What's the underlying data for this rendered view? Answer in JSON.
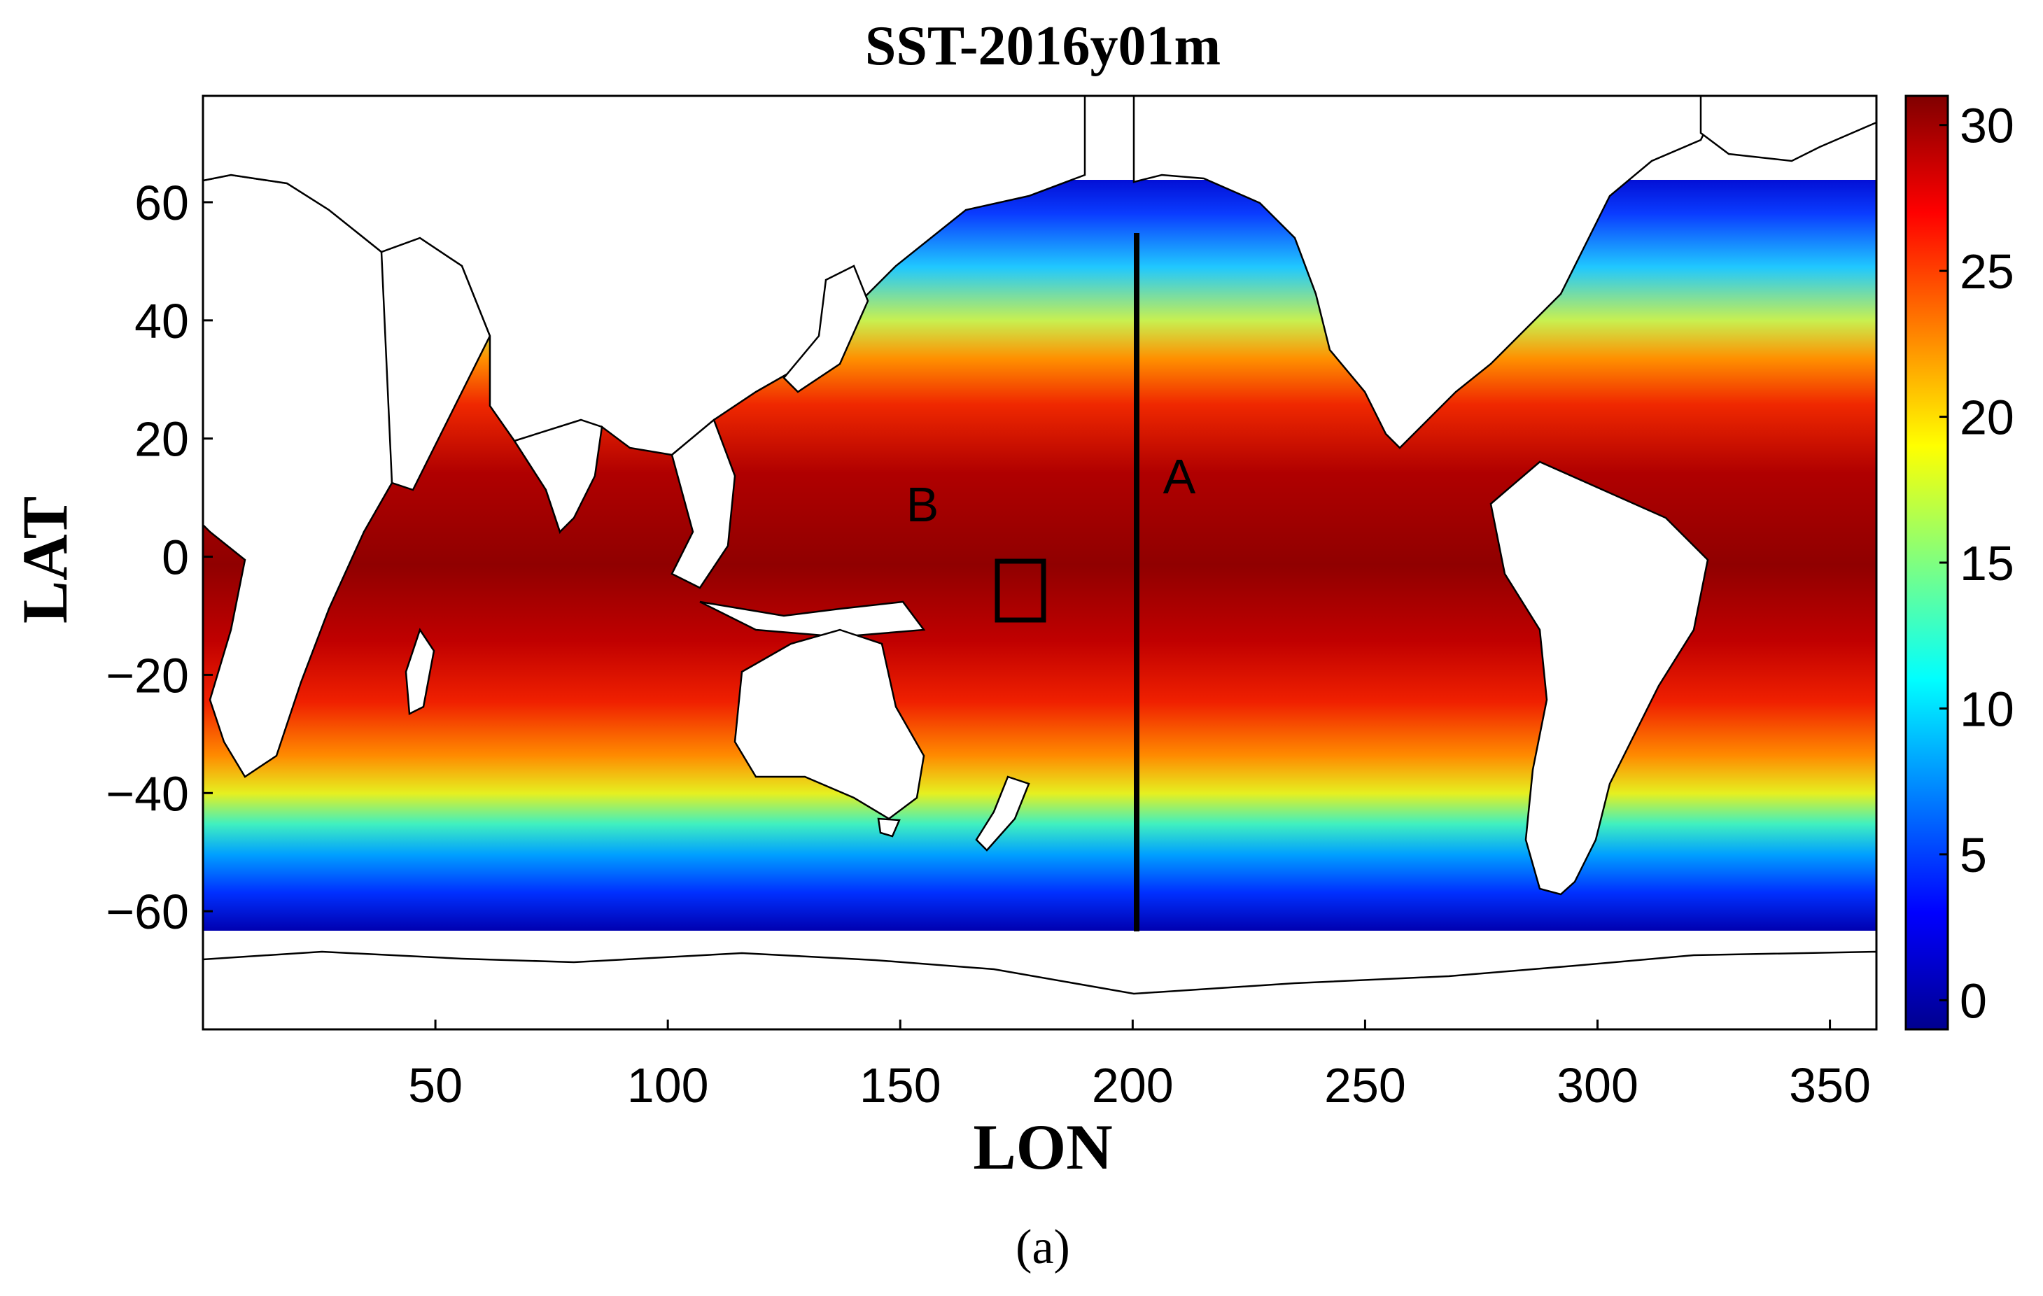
{
  "chart_data": {
    "type": "heatmap",
    "title": "SST-2016y01m",
    "xlabel": "LON",
    "ylabel": "LAT",
    "xlim": [
      0,
      360
    ],
    "ylim": [
      -80,
      78
    ],
    "data_lat_range": [
      -62,
      63
    ],
    "x_ticks": [
      50,
      100,
      150,
      200,
      250,
      300,
      350
    ],
    "y_ticks": [
      60,
      40,
      20,
      0,
      -20,
      -40,
      -60
    ],
    "colorbar": {
      "range": [
        -1,
        31
      ],
      "ticks": [
        30,
        25,
        20,
        15,
        10,
        5,
        0
      ],
      "colormap": "jet"
    },
    "annotations": [
      {
        "label": "A",
        "lon": 209,
        "lat": 15
      },
      {
        "label": "B",
        "lon": 155,
        "lat": 10
      }
    ],
    "transect": {
      "name": "A",
      "lon": 200,
      "lat_range": [
        -62,
        55
      ]
    },
    "box": {
      "name": "B",
      "lon_range": [
        170,
        180
      ],
      "lat_range": [
        -10,
        0
      ]
    },
    "profile_note": "Warmest (28-30) near equator in W Pacific / Indian Ocean; cooling poleward to ~0 at 60N/60S"
  },
  "caption": "(a)"
}
